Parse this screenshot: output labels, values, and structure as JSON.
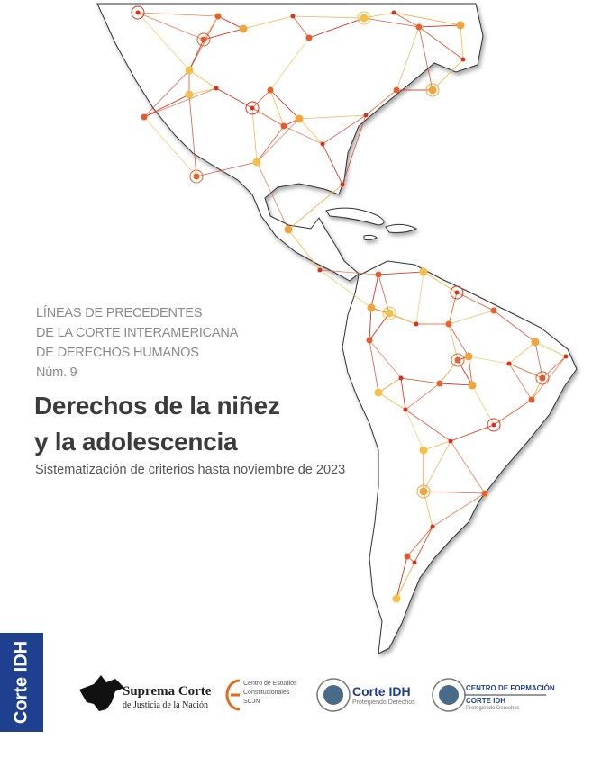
{
  "header": {
    "series_lines": [
      "LÍNEAS DE PRECEDENTES",
      "DE LA CORTE INTERAMERICANA",
      "DE DERECHOS HUMANOS"
    ],
    "number": "Núm. 9"
  },
  "title_lines": [
    "Derechos de la niñez",
    "y la adolescencia"
  ],
  "subtitle": "Sistematización de criterios hasta noviembre de 2023",
  "side_tab": "Corte IDH",
  "logos": [
    {
      "lines": [
        "Suprema Corte",
        "de Justicia de la Nación"
      ]
    },
    {
      "lines": [
        "Centro de Estudios",
        "Constitucionales",
        "SCJN"
      ]
    },
    {
      "lines": [
        "Corte IDH",
        "Protegiendo Derechos"
      ]
    },
    {
      "lines": [
        "CENTRO DE FORMACIÓN",
        "CORTE IDH",
        "Protegiendo Derechos"
      ]
    }
  ]
}
